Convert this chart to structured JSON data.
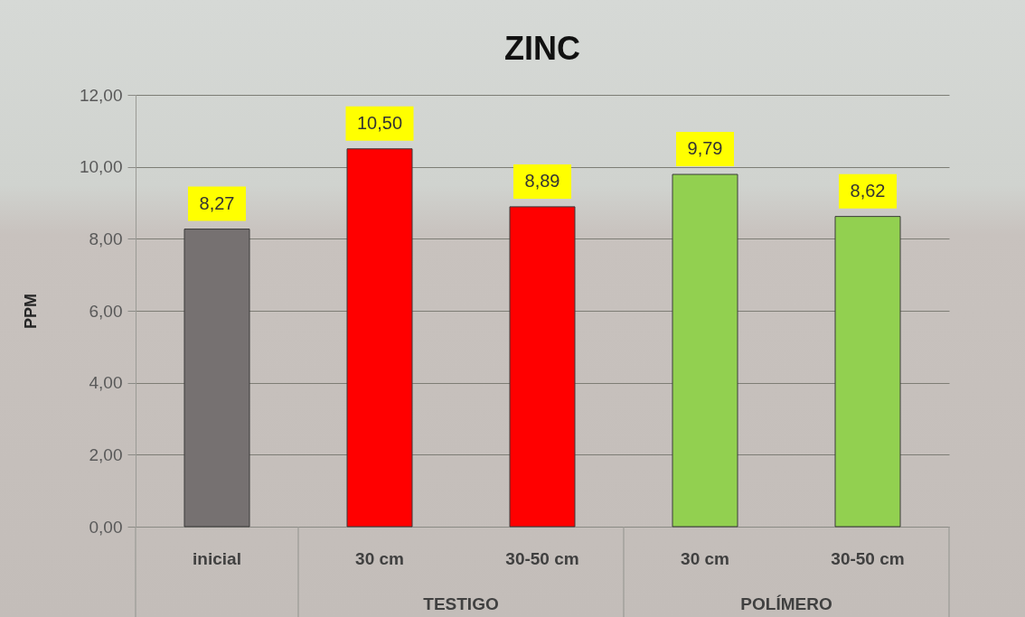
{
  "chart_data": {
    "type": "bar",
    "title": "ZINC",
    "ylabel": "PPM",
    "categories": [
      "inicial",
      "30 cm",
      "30-50 cm",
      "30 cm",
      "30-50 cm"
    ],
    "values": [
      8.27,
      10.5,
      8.89,
      9.79,
      8.62
    ],
    "colors": [
      "#767171",
      "#ff0000",
      "#ff0000",
      "#92d050",
      "#92d050"
    ],
    "value_labels": [
      "8,27",
      "10,50",
      "8,89",
      "9,79",
      "8,62"
    ],
    "ylim": [
      0,
      12
    ],
    "yticks": [
      {
        "value": 0,
        "label": "0,00"
      },
      {
        "value": 2,
        "label": "2,00"
      },
      {
        "value": 4,
        "label": "4,00"
      },
      {
        "value": 6,
        "label": "6,00"
      },
      {
        "value": 8,
        "label": "8,00"
      },
      {
        "value": 10,
        "label": "10,00"
      },
      {
        "value": 12,
        "label": "12,00"
      }
    ],
    "grid": "y",
    "annotations": [
      "TESTIGO",
      "POLÍMERO"
    ]
  }
}
